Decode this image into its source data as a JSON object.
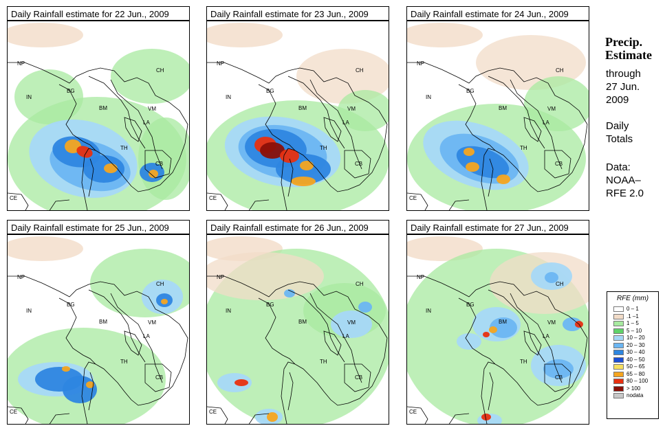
{
  "panels": [
    {
      "title": "Daily Rainfall estimate for  22 Jun., 2009"
    },
    {
      "title": "Daily Rainfall estimate for  23 Jun., 2009"
    },
    {
      "title": "Daily Rainfall estimate for  24 Jun., 2009"
    },
    {
      "title": "Daily Rainfall estimate for  25 Jun., 2009"
    },
    {
      "title": "Daily Rainfall estimate for  26 Jun., 2009"
    },
    {
      "title": "Daily Rainfall estimate for  27 Jun., 2009"
    }
  ],
  "country_labels": [
    "NP",
    "CH",
    "IN",
    "BG",
    "BM",
    "VM",
    "LA",
    "TH",
    "CB",
    "CE"
  ],
  "side": {
    "title_line1": "Precip.",
    "title_line2": "Estimate",
    "through": "through",
    "date_line1": "27 Jun.",
    "date_line2": "2009",
    "daily_line1": "Daily",
    "daily_line2": "Totals",
    "data_line1": "Data:",
    "data_line2": "NOAA–",
    "data_line3": "RFE 2.0"
  },
  "legend": {
    "title": "RFE (mm)",
    "items": [
      {
        "label": "0 – 1",
        "color": "#ffffff"
      },
      {
        "label": ".1 –1",
        "color": "#f2dcc8"
      },
      {
        "label": "1 – 5",
        "color": "#a8eaa0"
      },
      {
        "label": "5 – 10",
        "color": "#5fd36a"
      },
      {
        "label": "10 – 20",
        "color": "#a6d8f7"
      },
      {
        "label": "20 – 30",
        "color": "#6cb6f2"
      },
      {
        "label": "30 – 40",
        "color": "#2e86e0"
      },
      {
        "label": "40 – 50",
        "color": "#1a4fd6"
      },
      {
        "label": "50 – 65",
        "color": "#f7e060"
      },
      {
        "label": "65 – 80",
        "color": "#f5a520"
      },
      {
        "label": "80 – 100",
        "color": "#e83010"
      },
      {
        "label": "> 100",
        "color": "#8a1008"
      },
      {
        "label": "nodata",
        "color": "#c8c8c8"
      }
    ]
  }
}
